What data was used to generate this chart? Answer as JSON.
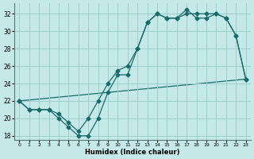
{
  "xlabel": "Humidex (Indice chaleur)",
  "xlim": [
    -0.5,
    23.5
  ],
  "ylim": [
    17.5,
    33.2
  ],
  "xticks": [
    0,
    1,
    2,
    3,
    4,
    5,
    6,
    7,
    8,
    9,
    10,
    11,
    12,
    13,
    14,
    15,
    16,
    17,
    18,
    19,
    20,
    21,
    22,
    23
  ],
  "yticks": [
    18,
    20,
    22,
    24,
    26,
    28,
    30,
    32
  ],
  "bg_color": "#c5e8e8",
  "grid_color": "#9ecece",
  "line_color": "#1a6b6b",
  "curve1_x": [
    0,
    1,
    2,
    3,
    4,
    5,
    6,
    7,
    8,
    9,
    10,
    11,
    12,
    13,
    14,
    15,
    16,
    17,
    18,
    19,
    20,
    21,
    22,
    23
  ],
  "curve1_y": [
    22,
    21,
    21,
    21,
    20,
    19,
    18,
    18,
    20,
    23,
    25,
    25,
    28,
    31,
    32,
    31.5,
    31.5,
    32.5,
    31.5,
    31.5,
    32,
    31.5,
    29.5,
    24.5
  ],
  "curve2_x": [
    0,
    1,
    2,
    3,
    4,
    5,
    6,
    7,
    8,
    9,
    10,
    11,
    12,
    13,
    14,
    15,
    16,
    17,
    18,
    19,
    20,
    21,
    22,
    23
  ],
  "curve2_y": [
    22,
    21,
    21,
    21,
    20.5,
    19.5,
    18.5,
    20,
    22,
    24,
    25.5,
    26,
    28,
    31,
    32,
    31.5,
    31.5,
    32,
    32,
    32,
    32,
    31.5,
    29.5,
    24.5
  ],
  "curve3_x": [
    0,
    23
  ],
  "curve3_y": [
    22,
    24.5
  ],
  "markersize": 2.5
}
